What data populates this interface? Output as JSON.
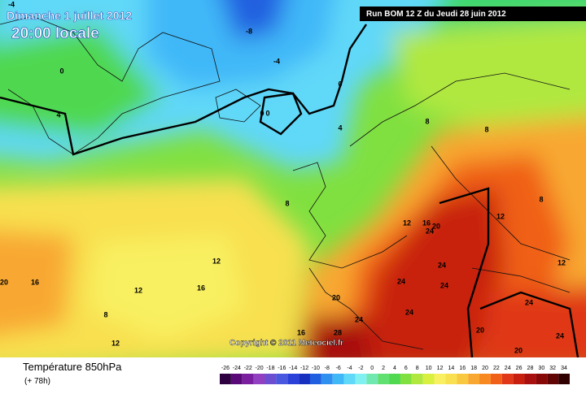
{
  "header": {
    "date": "Dimanche 1 juillet 2012",
    "time": "20:00 locale",
    "run": "Run BOM 12 Z du Jeudi 28 juin 2012"
  },
  "map": {
    "copyright": "Copyright © 2011 Meteociel.fr",
    "contour_labels": [
      "-4",
      "-8",
      "-4",
      "0",
      "4",
      "0",
      "0",
      "0",
      "4",
      "8",
      "8",
      "8",
      "12",
      "16",
      "20",
      "24",
      "12",
      "16",
      "12",
      "16",
      "8",
      "12",
      "20",
      "20",
      "24",
      "24",
      "24",
      "24",
      "24",
      "16",
      "28",
      "20",
      "24",
      "24",
      "20",
      "12",
      "12",
      "8"
    ]
  },
  "legend": {
    "title": "Température 850hPa",
    "lead": "(+ 78h)",
    "scale": {
      "ticks": [
        -26,
        -24,
        -22,
        -20,
        -18,
        -16,
        -14,
        -12,
        -10,
        -8,
        -6,
        -4,
        -2,
        0,
        2,
        4,
        6,
        8,
        10,
        12,
        14,
        16,
        18,
        20,
        22,
        24,
        26,
        28,
        30,
        32,
        34
      ],
      "colors": [
        "#2e0040",
        "#5a0a78",
        "#7a1fa0",
        "#9040c0",
        "#6b4fd0",
        "#4a58e0",
        "#2a40d8",
        "#1830c0",
        "#2060e0",
        "#3090f0",
        "#40b8f8",
        "#60d8f8",
        "#80f0f0",
        "#70e8b0",
        "#60e070",
        "#50d850",
        "#80e040",
        "#b0e840",
        "#d8f040",
        "#f8f060",
        "#f8e050",
        "#f8c840",
        "#f8a830",
        "#f88820",
        "#f06018",
        "#e03818",
        "#c82010",
        "#a81010",
        "#880808",
        "#600404",
        "#300000"
      ]
    }
  }
}
